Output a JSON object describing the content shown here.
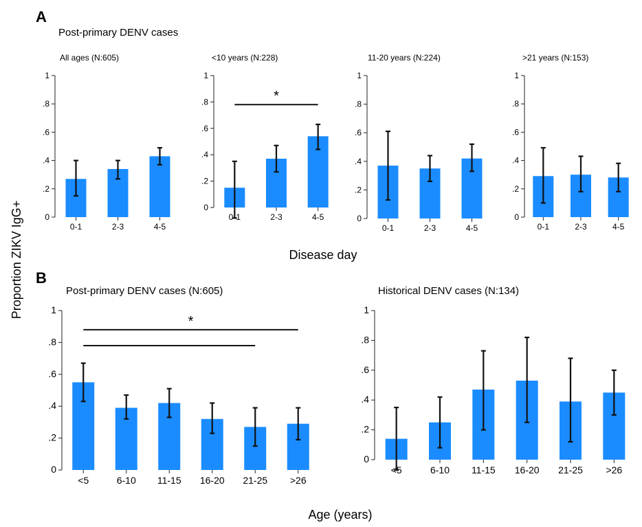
{
  "figure": {
    "panel_a_letter": "A",
    "panel_b_letter": "B",
    "y_axis_label": "Proportion ZIKV IgG+",
    "panel_a_xlabel": "Disease day",
    "panel_b_xlabel": "Age (years)",
    "bar_color": "#1a8cff"
  },
  "chart_data": [
    {
      "type": "bar",
      "panel": "A",
      "group_title": "Post-primary DENV cases",
      "title": "All ages (N:605)",
      "categories": [
        "0-1",
        "2-3",
        "4-5"
      ],
      "values": [
        0.27,
        0.34,
        0.43
      ],
      "error_low": [
        0.15,
        0.27,
        0.37
      ],
      "error_high": [
        0.4,
        0.4,
        0.49
      ],
      "ylim": [
        0,
        1
      ],
      "yticks": [
        "0",
        ".2",
        ".4",
        ".6",
        ".8",
        "1"
      ],
      "significance": []
    },
    {
      "type": "bar",
      "panel": "A",
      "title": "<10 years (N:228)",
      "categories": [
        "0-1",
        "2-3",
        "4-5"
      ],
      "values": [
        0.15,
        0.37,
        0.54
      ],
      "error_low": [
        -0.08,
        0.27,
        0.44
      ],
      "error_high": [
        0.35,
        0.47,
        0.63
      ],
      "ylim": [
        0,
        1
      ],
      "yticks": [
        "0",
        ".2",
        ".4",
        ".6",
        ".8",
        "1"
      ],
      "significance": [
        {
          "from": 0,
          "to": 2,
          "level": 0.78,
          "label": "*"
        }
      ]
    },
    {
      "type": "bar",
      "panel": "A",
      "title": "11-20 years (N:224)",
      "categories": [
        "0-1",
        "2-3",
        "4-5"
      ],
      "values": [
        0.37,
        0.35,
        0.42
      ],
      "error_low": [
        0.13,
        0.26,
        0.33
      ],
      "error_high": [
        0.61,
        0.44,
        0.52
      ],
      "ylim": [
        0,
        1
      ],
      "yticks": [
        "0",
        ".2",
        ".4",
        ".6",
        ".8",
        "1"
      ],
      "significance": []
    },
    {
      "type": "bar",
      "panel": "A",
      "title": ">21 years (N:153)",
      "categories": [
        "0-1",
        "2-3",
        "4-5"
      ],
      "values": [
        0.29,
        0.3,
        0.28
      ],
      "error_low": [
        0.1,
        0.18,
        0.18
      ],
      "error_high": [
        0.49,
        0.43,
        0.38
      ],
      "ylim": [
        0,
        1
      ],
      "yticks": [
        "0",
        ".2",
        ".4",
        ".6",
        ".8",
        "1"
      ],
      "significance": []
    },
    {
      "type": "bar",
      "panel": "B",
      "title": "Post-primary DENV cases (N:605)",
      "categories": [
        "<5",
        "6-10",
        "11-15",
        "16-20",
        "21-25",
        ">26"
      ],
      "values": [
        0.55,
        0.39,
        0.42,
        0.32,
        0.27,
        0.29
      ],
      "error_low": [
        0.43,
        0.32,
        0.33,
        0.23,
        0.15,
        0.19
      ],
      "error_high": [
        0.67,
        0.47,
        0.51,
        0.42,
        0.39,
        0.39
      ],
      "ylim": [
        0,
        1
      ],
      "yticks": [
        "0",
        ".2",
        ".4",
        ".6",
        ".8",
        "1"
      ],
      "significance": [
        {
          "from": 0,
          "to": 5,
          "level": 0.88,
          "label": "*"
        },
        {
          "from": 0,
          "to": 4,
          "level": 0.78,
          "label": ""
        }
      ]
    },
    {
      "type": "bar",
      "panel": "B",
      "title": "Historical DENV cases (N:134)",
      "categories": [
        "<5",
        "6-10",
        "11-15",
        "16-20",
        "21-25",
        ">26"
      ],
      "values": [
        0.14,
        0.25,
        0.47,
        0.53,
        0.39,
        0.45
      ],
      "error_low": [
        -0.07,
        0.08,
        0.2,
        0.25,
        0.12,
        0.3
      ],
      "error_high": [
        0.35,
        0.42,
        0.73,
        0.82,
        0.68,
        0.6
      ],
      "ylim": [
        0,
        1
      ],
      "yticks": [
        "0",
        ".2",
        ".4",
        ".6",
        ".8",
        "1"
      ],
      "significance": []
    }
  ]
}
